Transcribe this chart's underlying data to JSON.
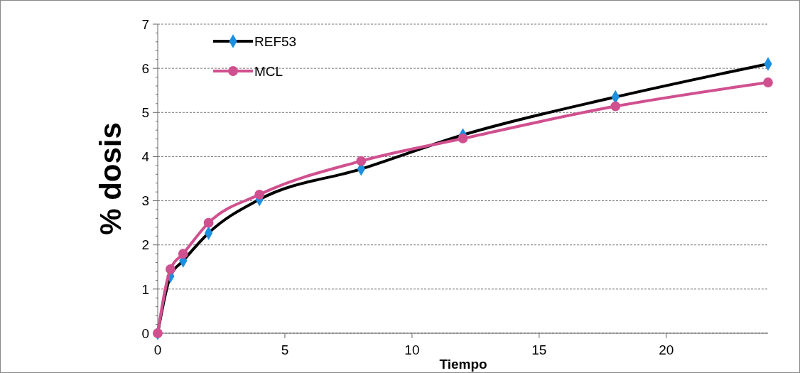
{
  "chart_data": {
    "type": "line",
    "xlabel": "Tiempo",
    "ylabel": "% dosis",
    "xlim": [
      0,
      24
    ],
    "ylim": [
      0,
      7
    ],
    "xticks": [
      0,
      5,
      10,
      15,
      20
    ],
    "yticks": [
      0,
      1,
      2,
      3,
      4,
      5,
      6,
      7
    ],
    "grid": "y",
    "legend": "top left",
    "x": [
      0,
      0.5,
      1,
      2,
      4,
      8,
      12,
      18,
      24
    ],
    "series": [
      {
        "name": "REF53",
        "color": "#000000",
        "marker": "diamond",
        "colors": [
          "#1b8fe0",
          "#1b8fe0",
          "#1b8fe0",
          "#1b8fe0",
          "#1b8fe0",
          "#1b8fe0",
          "#1b8fe0",
          "#1b8fe0",
          "#1b8fe0"
        ],
        "values": [
          0,
          1.29,
          1.64,
          2.27,
          3.03,
          3.72,
          4.49,
          5.35,
          6.1
        ]
      },
      {
        "name": "MCL",
        "color": "#d0508f",
        "marker": "circle",
        "values": [
          0,
          1.45,
          1.8,
          2.5,
          3.14,
          3.9,
          4.41,
          5.14,
          5.68
        ]
      }
    ]
  }
}
